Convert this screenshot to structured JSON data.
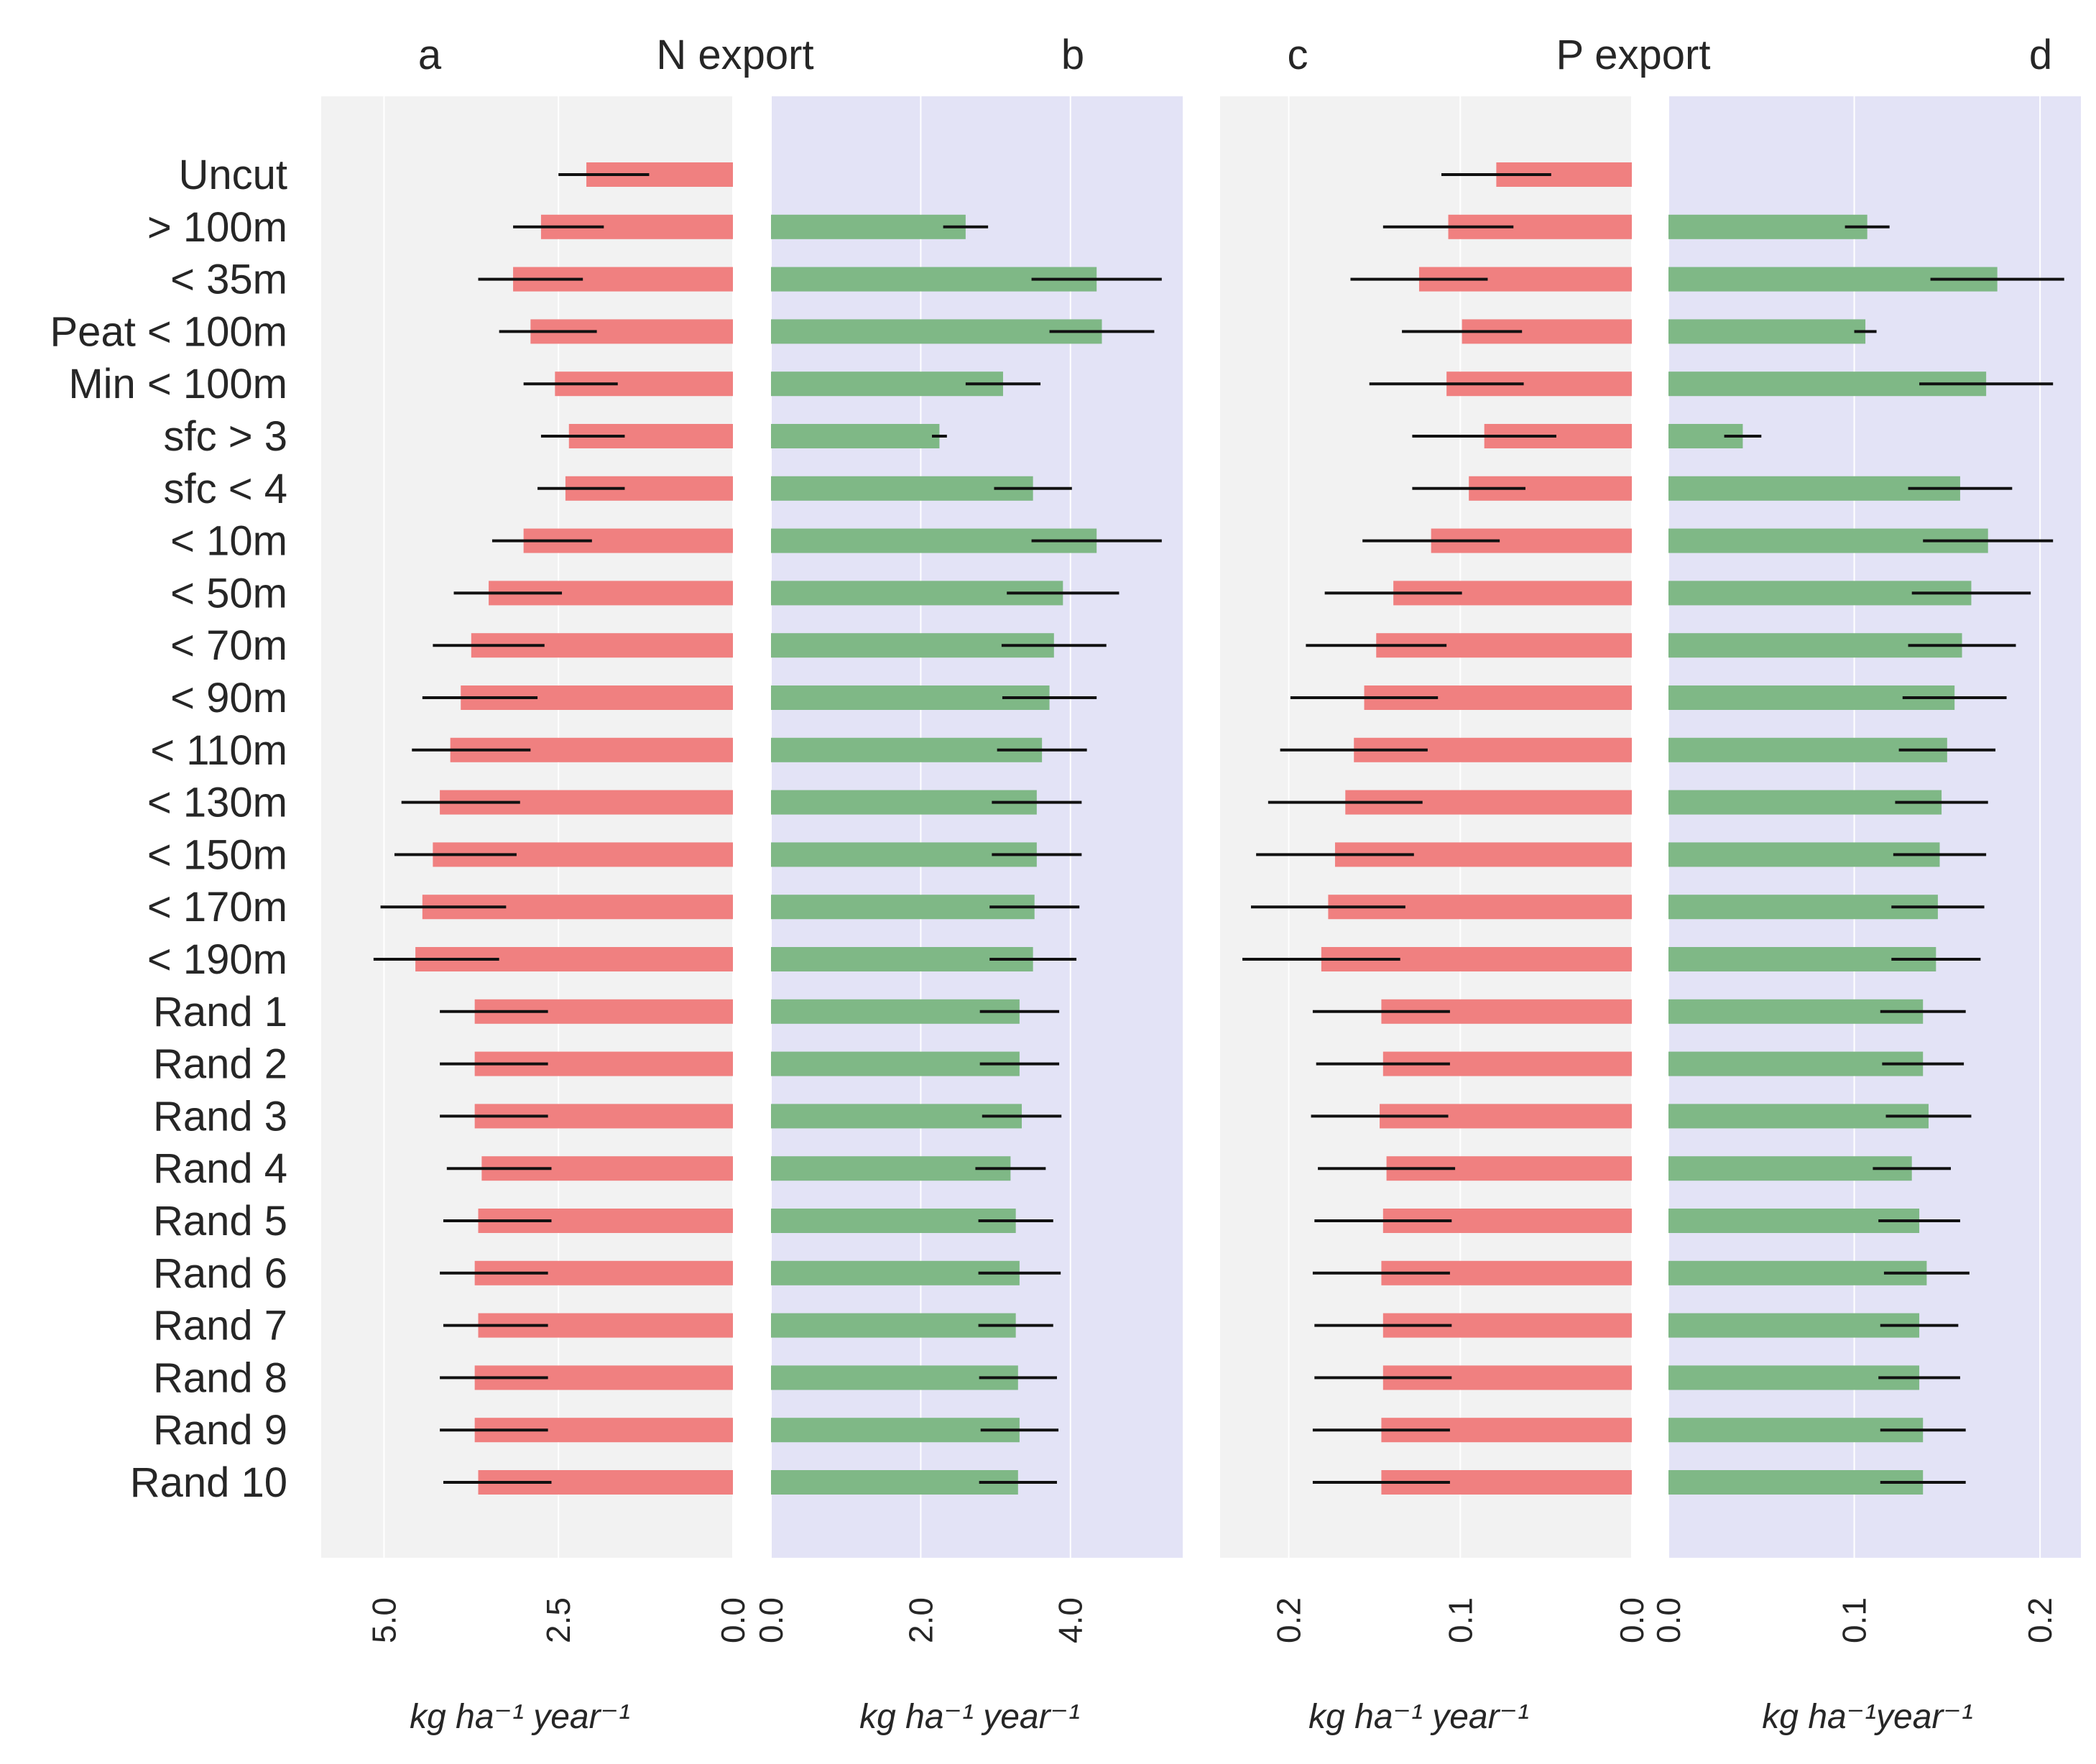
{
  "chart_data": {
    "type": "bar",
    "orientation": "horizontal",
    "titles": {
      "n_group": "N export",
      "p_group": "P export"
    },
    "categories": [
      "Uncut",
      "> 100m",
      "< 35m",
      "Peat < 100m",
      "Min < 100m",
      "sfc > 3",
      "sfc < 4",
      "< 10m",
      "< 50m",
      "< 70m",
      "< 90m",
      "< 110m",
      "< 130m",
      "< 150m",
      "< 170m",
      "< 190m",
      "Rand 1",
      "Rand 2",
      "Rand 3",
      "Rand 4",
      "Rand 5",
      "Rand 6",
      "Rand 7",
      "Rand 8",
      "Rand 9",
      "Rand 10"
    ],
    "colors": {
      "red_bar": "#f08080",
      "green_bar": "#7fb886",
      "error_bar": "#111111",
      "panel_grey": "#f2f2f2",
      "panel_blue": "#e3e3f6",
      "grid": "#ffffff"
    },
    "panels": [
      {
        "letter": "a",
        "group": "N export",
        "color_key": "red_bar",
        "background_key": "panel_grey",
        "reversed": true,
        "xlim": [
          0,
          5.9
        ],
        "ticks": [
          0.0,
          2.5,
          5.0
        ],
        "tick_labels": [
          "0.0",
          "2.5",
          "5.0"
        ],
        "xlabel": "kg ha⁻¹ year⁻¹",
        "values": [
          2.1,
          2.75,
          3.15,
          2.9,
          2.55,
          2.35,
          2.4,
          3.0,
          3.5,
          3.75,
          3.9,
          4.05,
          4.2,
          4.3,
          4.45,
          4.55,
          3.7,
          3.7,
          3.7,
          3.6,
          3.65,
          3.7,
          3.65,
          3.7,
          3.7,
          3.65
        ],
        "errors": [
          0.4,
          0.4,
          0.5,
          0.45,
          0.45,
          0.4,
          0.4,
          0.45,
          0.5,
          0.55,
          0.55,
          0.55,
          0.55,
          0.55,
          0.6,
          0.6,
          0.5,
          0.5,
          0.5,
          0.5,
          0.5,
          0.5,
          0.5,
          0.5,
          0.5,
          0.5
        ],
        "errors_lower": [
          0.9,
          0.9,
          1.0,
          0.95,
          0.9,
          0.8,
          0.85,
          0.98,
          1.05,
          1.05,
          1.1,
          1.15,
          1.15,
          1.2,
          1.2,
          1.2,
          1.05,
          1.05,
          1.05,
          1.0,
          1.05,
          1.05,
          1.0,
          1.05,
          1.05,
          1.05
        ]
      },
      {
        "letter": "b",
        "group": "N export",
        "color_key": "green_bar",
        "background_key": "panel_blue",
        "reversed": false,
        "xlim": [
          0,
          5.5
        ],
        "ticks": [
          0.0,
          2.0,
          4.0
        ],
        "tick_labels": [
          "0.0",
          "2.0",
          "4.0"
        ],
        "xlabel": "kg ha⁻¹ year⁻¹",
        "values": [
          null,
          2.6,
          4.35,
          4.42,
          3.1,
          2.25,
          3.5,
          4.35,
          3.9,
          3.78,
          3.72,
          3.62,
          3.55,
          3.55,
          3.52,
          3.5,
          3.32,
          3.32,
          3.35,
          3.2,
          3.27,
          3.32,
          3.27,
          3.3,
          3.32,
          3.3
        ],
        "errors": [
          null,
          0.3,
          0.87,
          0.7,
          0.5,
          0.1,
          0.52,
          0.87,
          0.75,
          0.7,
          0.63,
          0.6,
          0.6,
          0.6,
          0.6,
          0.58,
          0.53,
          0.53,
          0.53,
          0.47,
          0.5,
          0.55,
          0.5,
          0.52,
          0.52,
          0.52
        ],
        "errors_lower": [
          null,
          0.3,
          0.87,
          0.7,
          0.5,
          0.1,
          0.52,
          0.87,
          0.75,
          0.7,
          0.63,
          0.6,
          0.6,
          0.6,
          0.6,
          0.58,
          0.53,
          0.53,
          0.53,
          0.47,
          0.5,
          0.55,
          0.5,
          0.52,
          0.52,
          0.52
        ]
      },
      {
        "letter": "c",
        "group": "P export",
        "color_key": "red_bar",
        "background_key": "panel_grey",
        "reversed": true,
        "xlim": [
          0,
          0.24
        ],
        "ticks": [
          0.0,
          0.1,
          0.2
        ],
        "tick_labels": [
          "0.0",
          "0.1",
          "0.2"
        ],
        "xlabel": "kg ha⁻¹ year⁻¹",
        "values": [
          0.079,
          0.107,
          0.124,
          0.099,
          0.108,
          0.086,
          0.095,
          0.117,
          0.139,
          0.149,
          0.156,
          0.162,
          0.167,
          0.173,
          0.177,
          0.181,
          0.146,
          0.145,
          0.147,
          0.143,
          0.145,
          0.146,
          0.145,
          0.145,
          0.146,
          0.146
        ],
        "errors": [
          0.032,
          0.038,
          0.04,
          0.035,
          0.045,
          0.042,
          0.033,
          0.04,
          0.04,
          0.041,
          0.043,
          0.043,
          0.045,
          0.046,
          0.045,
          0.046,
          0.04,
          0.039,
          0.04,
          0.04,
          0.04,
          0.04,
          0.04,
          0.04,
          0.04,
          0.04
        ],
        "errors_lower": [
          0.032,
          0.038,
          0.04,
          0.035,
          0.045,
          0.042,
          0.033,
          0.04,
          0.04,
          0.041,
          0.043,
          0.043,
          0.045,
          0.046,
          0.045,
          0.046,
          0.04,
          0.039,
          0.04,
          0.04,
          0.04,
          0.04,
          0.04,
          0.04,
          0.04,
          0.04
        ]
      },
      {
        "letter": "d",
        "group": "P export",
        "color_key": "green_bar",
        "background_key": "panel_blue",
        "reversed": false,
        "xlim": [
          0,
          0.222
        ],
        "ticks": [
          0.0,
          0.1,
          0.2
        ],
        "tick_labels": [
          "0.0",
          "0.1",
          "0.2"
        ],
        "xlabel": "kg ha⁻¹year⁻¹",
        "values": [
          null,
          0.107,
          0.177,
          0.106,
          0.171,
          0.04,
          0.157,
          0.172,
          0.163,
          0.158,
          0.154,
          0.15,
          0.147,
          0.146,
          0.145,
          0.144,
          0.137,
          0.137,
          0.14,
          0.131,
          0.135,
          0.139,
          0.135,
          0.135,
          0.137,
          0.137
        ],
        "errors": [
          null,
          0.012,
          0.036,
          0.006,
          0.036,
          0.01,
          0.028,
          0.035,
          0.032,
          0.029,
          0.028,
          0.026,
          0.025,
          0.025,
          0.025,
          0.024,
          0.023,
          0.022,
          0.023,
          0.021,
          0.022,
          0.023,
          0.021,
          0.022,
          0.023,
          0.023
        ],
        "errors_lower": [
          null,
          0.012,
          0.036,
          0.006,
          0.036,
          0.01,
          0.028,
          0.035,
          0.032,
          0.029,
          0.028,
          0.026,
          0.025,
          0.025,
          0.025,
          0.024,
          0.023,
          0.022,
          0.023,
          0.021,
          0.022,
          0.023,
          0.021,
          0.022,
          0.023,
          0.023
        ]
      }
    ]
  }
}
